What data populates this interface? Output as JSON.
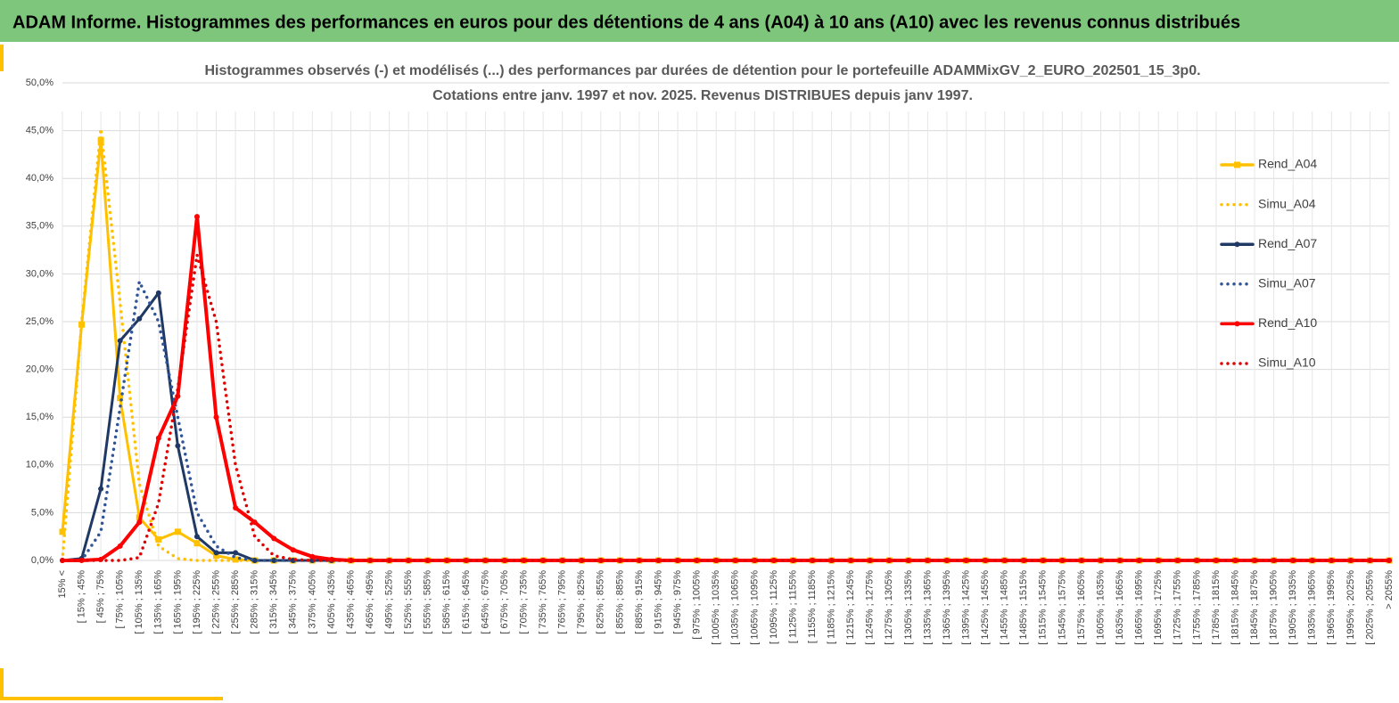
{
  "header": {
    "title": "ADAM Informe. Histogrammes des performances en euros pour des détentions de 4 ans (A04) à 10 ans (A10) avec les revenus connus distribués"
  },
  "chart_data": {
    "type": "line",
    "title": "Histogrammes observés (-) et modélisés (...) des performances par durées de détention pour le portefeuille ADAMMixGV_2_EURO_202501_15_3p0.",
    "subtitle": "Cotations entre janv. 1997 et nov. 2025. Revenus DISTRIBUES depuis janv 1997.",
    "categories": [
      "15% <",
      "[ 15% ; 45%",
      "[ 45% ; 75%",
      "[ 75% ; 105%",
      "[ 105% ; 135%",
      "[ 135% ; 165%",
      "[ 165% ; 195%",
      "[ 195% ; 225%",
      "[ 225% ; 255%",
      "[ 255% ; 285%",
      "[ 285% ; 315%",
      "[ 315% ; 345%",
      "[ 345% ; 375%",
      "[ 375% ; 405%",
      "[ 405% ; 435%",
      "[ 435% ; 465%",
      "[ 465% ; 495%",
      "[ 495% ; 525%",
      "[ 525% ; 555%",
      "[ 555% ; 585%",
      "[ 585% ; 615%",
      "[ 615% ; 645%",
      "[ 645% ; 675%",
      "[ 675% ; 705%",
      "[ 705% ; 735%",
      "[ 735% ; 765%",
      "[ 765% ; 795%",
      "[ 795% ; 825%",
      "[ 825% ; 855%",
      "[ 855% ; 885%",
      "[ 885% ; 915%",
      "[ 915% ; 945%",
      "[ 945% ; 975%",
      "[ 975% ; 1005%",
      "[ 1005% ; 1035%",
      "[ 1035% ; 1065%",
      "[ 1065% ; 1095%",
      "[ 1095% ; 1125%",
      "[ 1125% ; 1155%",
      "[ 1155% ; 1185%",
      "[ 1185% ; 1215%",
      "[ 1215% ; 1245%",
      "[ 1245% ; 1275%",
      "[ 1275% ; 1305%",
      "[ 1305% ; 1335%",
      "[ 1335% ; 1365%",
      "[ 1365% ; 1395%",
      "[ 1395% ; 1425%",
      "[ 1425% ; 1455%",
      "[ 1455% ; 1485%",
      "[ 1485% ; 1515%",
      "[ 1515% ; 1545%",
      "[ 1545% ; 1575%",
      "[ 1575% ; 1605%",
      "[ 1605% ; 1635%",
      "[ 1635% ; 1665%",
      "[ 1665% ; 1695%",
      "[ 1695% ; 1725%",
      "[ 1725% ; 1755%",
      "[ 1755% ; 1785%",
      "[ 1785% ; 1815%",
      "[ 1815% ; 1845%",
      "[ 1845% ; 1875%",
      "[ 1875% ; 1905%",
      "[ 1905% ; 1935%",
      "[ 1935% ; 1965%",
      "[ 1965% ; 1995%",
      "[ 1995% ; 2025%",
      "[ 2025% ; 2055%",
      "> 2055%"
    ],
    "series": [
      {
        "name": "Rend_A04",
        "color": "#ffc000",
        "style": "solid",
        "marker": "square",
        "values": [
          3.0,
          24.7,
          44.0,
          17.0,
          4.5,
          2.2,
          3.0,
          1.8,
          0.5,
          0.1,
          0,
          0,
          0,
          0,
          0,
          0,
          0,
          0,
          0,
          0,
          0,
          0,
          0,
          0,
          0,
          0,
          0,
          0,
          0,
          0,
          0,
          0,
          0,
          0,
          0,
          0,
          0,
          0,
          0,
          0,
          0,
          0,
          0,
          0,
          0,
          0,
          0,
          0,
          0,
          0,
          0,
          0,
          0,
          0,
          0,
          0,
          0,
          0,
          0,
          0,
          0,
          0,
          0,
          0,
          0,
          0,
          0,
          0,
          0,
          0
        ]
      },
      {
        "name": "Simu_A04",
        "color": "#ffc000",
        "style": "dotted",
        "marker": null,
        "values": [
          0,
          25,
          45.2,
          27,
          8,
          1.5,
          0.2,
          0,
          0,
          0,
          0,
          0,
          0,
          0,
          0,
          0,
          0,
          0,
          0,
          0,
          0,
          0,
          0,
          0,
          0,
          0,
          0,
          0,
          0,
          0,
          0,
          0,
          0,
          0,
          0,
          0,
          0,
          0,
          0,
          0,
          0,
          0,
          0,
          0,
          0,
          0,
          0,
          0,
          0,
          0,
          0,
          0,
          0,
          0,
          0,
          0,
          0,
          0,
          0,
          0,
          0,
          0,
          0,
          0,
          0,
          0,
          0,
          0,
          0,
          0
        ]
      },
      {
        "name": "Rend_A07",
        "color": "#1f3864",
        "style": "solid",
        "marker": "circle",
        "values": [
          0,
          0.2,
          7.5,
          23,
          25.3,
          28,
          12,
          2.5,
          0.8,
          0.8,
          0,
          0,
          0,
          0,
          0,
          0,
          0,
          0,
          0,
          0,
          0,
          0,
          0,
          0,
          0,
          0,
          0,
          0,
          0,
          0,
          0,
          0,
          0,
          0,
          0,
          0,
          0,
          0,
          0,
          0,
          0,
          0,
          0,
          0,
          0,
          0,
          0,
          0,
          0,
          0,
          0,
          0,
          0,
          0,
          0,
          0,
          0,
          0,
          0,
          0,
          0,
          0,
          0,
          0,
          0,
          0,
          0,
          0,
          0,
          0
        ]
      },
      {
        "name": "Simu_A07",
        "color": "#2f5597",
        "style": "dotted",
        "marker": null,
        "values": [
          0,
          0,
          3,
          16,
          29.2,
          25,
          15,
          5,
          1.5,
          0.3,
          0,
          0,
          0,
          0,
          0,
          0,
          0,
          0,
          0,
          0,
          0,
          0,
          0,
          0,
          0,
          0,
          0,
          0,
          0,
          0,
          0,
          0,
          0,
          0,
          0,
          0,
          0,
          0,
          0,
          0,
          0,
          0,
          0,
          0,
          0,
          0,
          0,
          0,
          0,
          0,
          0,
          0,
          0,
          0,
          0,
          0,
          0,
          0,
          0,
          0,
          0,
          0,
          0,
          0,
          0,
          0,
          0,
          0,
          0,
          0
        ]
      },
      {
        "name": "Rend_A10",
        "color": "#ff0000",
        "style": "solid",
        "marker": "circle",
        "values": [
          0,
          0,
          0.1,
          1.5,
          4,
          12.8,
          17.2,
          36,
          15,
          5.5,
          4,
          2.3,
          1.1,
          0.4,
          0.1,
          0,
          0,
          0,
          0,
          0,
          0,
          0,
          0,
          0,
          0,
          0,
          0,
          0,
          0,
          0,
          0,
          0,
          0,
          0,
          0,
          0,
          0,
          0,
          0,
          0,
          0,
          0,
          0,
          0,
          0,
          0,
          0,
          0,
          0,
          0,
          0,
          0,
          0,
          0,
          0,
          0,
          0,
          0,
          0,
          0,
          0,
          0,
          0,
          0,
          0,
          0,
          0,
          0,
          0,
          0
        ]
      },
      {
        "name": "Simu_A10",
        "color": "#e00000",
        "style": "dotted",
        "marker": null,
        "values": [
          0,
          0,
          0,
          0,
          0.3,
          6,
          18,
          32,
          25,
          10,
          2.5,
          0.5,
          0.1,
          0,
          0,
          0,
          0,
          0,
          0,
          0,
          0,
          0,
          0,
          0,
          0,
          0,
          0,
          0,
          0,
          0,
          0,
          0,
          0,
          0,
          0,
          0,
          0,
          0,
          0,
          0,
          0,
          0,
          0,
          0,
          0,
          0,
          0,
          0,
          0,
          0,
          0,
          0,
          0,
          0,
          0,
          0,
          0,
          0,
          0,
          0,
          0,
          0,
          0,
          0,
          0,
          0,
          0,
          0,
          0,
          0
        ]
      }
    ],
    "ylim": [
      0,
      50
    ],
    "yticks": [
      {
        "value": 0,
        "label": "0,0%"
      },
      {
        "value": 5,
        "label": "5,0%"
      },
      {
        "value": 10,
        "label": "10,0%"
      },
      {
        "value": 15,
        "label": "15,0%"
      },
      {
        "value": 20,
        "label": "20,0%"
      },
      {
        "value": 25,
        "label": "25,0%"
      },
      {
        "value": 30,
        "label": "30,0%"
      },
      {
        "value": 35,
        "label": "35,0%"
      },
      {
        "value": 40,
        "label": "40,0%"
      },
      {
        "value": 45,
        "label": "45,0%"
      },
      {
        "value": 50,
        "label": "50,0%"
      }
    ],
    "grid": true,
    "legend": "right"
  }
}
